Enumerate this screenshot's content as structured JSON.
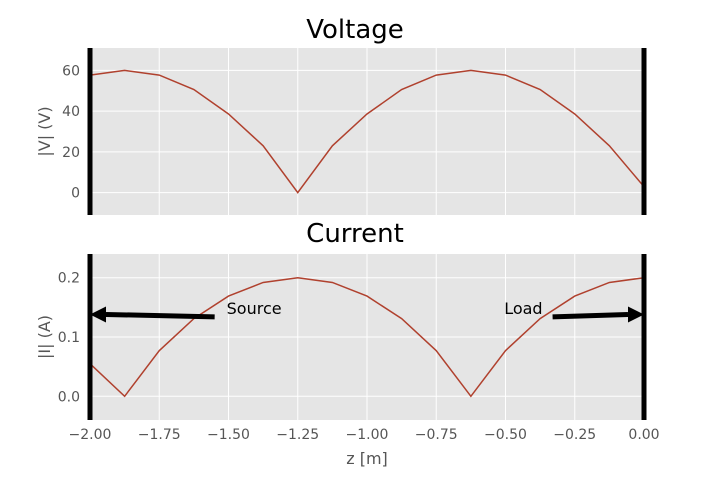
{
  "chart_data": [
    {
      "type": "line",
      "title": "Voltage",
      "xlabel": "",
      "ylabel": "|V| (V)",
      "xlim": [
        -2.0,
        0.0
      ],
      "ylim": [
        -11,
        71
      ],
      "yticks": [
        "0",
        "20",
        "40",
        "60"
      ],
      "ytick_values": [
        0,
        20,
        40,
        60
      ],
      "grid": true,
      "series": [
        {
          "color": "#B0412E",
          "x": [
            -2.0,
            -1.875,
            -1.75,
            -1.625,
            -1.5,
            -1.375,
            -1.25,
            -1.125,
            -1.0,
            -0.875,
            -0.75,
            -0.625,
            -0.5,
            -0.375,
            -0.25,
            -0.125,
            0.0
          ],
          "y": [
            57.7,
            60.0,
            57.7,
            50.6,
            38.6,
            23.0,
            0.0,
            23.0,
            38.6,
            50.6,
            57.7,
            60.0,
            57.7,
            50.6,
            38.6,
            23.0,
            2.9
          ]
        }
      ],
      "vlines": [
        -2.0,
        0.0
      ]
    },
    {
      "type": "line",
      "title": "Current",
      "xlabel": "z [m]",
      "ylabel": "|I| (A)",
      "xlim": [
        -2.0,
        0.0
      ],
      "ylim": [
        -0.04,
        0.24
      ],
      "yticks": [
        "0.0",
        "0.1",
        "0.2"
      ],
      "ytick_values": [
        0.0,
        0.1,
        0.2
      ],
      "xticks": [
        "−2.00",
        "−1.75",
        "−1.50",
        "−1.25",
        "−1.00",
        "−0.75",
        "−0.50",
        "−0.25",
        "0.00"
      ],
      "xtick_values": [
        -2.0,
        -1.75,
        -1.5,
        -1.25,
        -1.0,
        -0.75,
        -0.5,
        -0.25,
        0.0
      ],
      "grid": true,
      "series": [
        {
          "color": "#B0412E",
          "x": [
            -2.0,
            -1.875,
            -1.75,
            -1.625,
            -1.5,
            -1.375,
            -1.25,
            -1.125,
            -1.0,
            -0.875,
            -0.75,
            -0.625,
            -0.5,
            -0.375,
            -0.25,
            -0.125,
            0.0
          ],
          "y": [
            0.055,
            0.0,
            0.077,
            0.131,
            0.169,
            0.192,
            0.2,
            0.192,
            0.169,
            0.131,
            0.077,
            0.0,
            0.077,
            0.131,
            0.169,
            0.192,
            0.2
          ]
        }
      ],
      "vlines": [
        -2.0,
        0.0
      ],
      "annotations": [
        {
          "text": "Source",
          "arrow_from": [
            -1.55,
            0.134
          ],
          "arrow_to": [
            -2.0,
            0.138
          ]
        },
        {
          "text": "Load",
          "arrow_from": [
            -0.33,
            0.134
          ],
          "arrow_to": [
            0.0,
            0.138
          ]
        }
      ]
    }
  ],
  "colors": {
    "axes_bg": "#E5E5E5",
    "grid": "#FFFFFF",
    "line": "#B0412E",
    "boundary": "#000000"
  }
}
